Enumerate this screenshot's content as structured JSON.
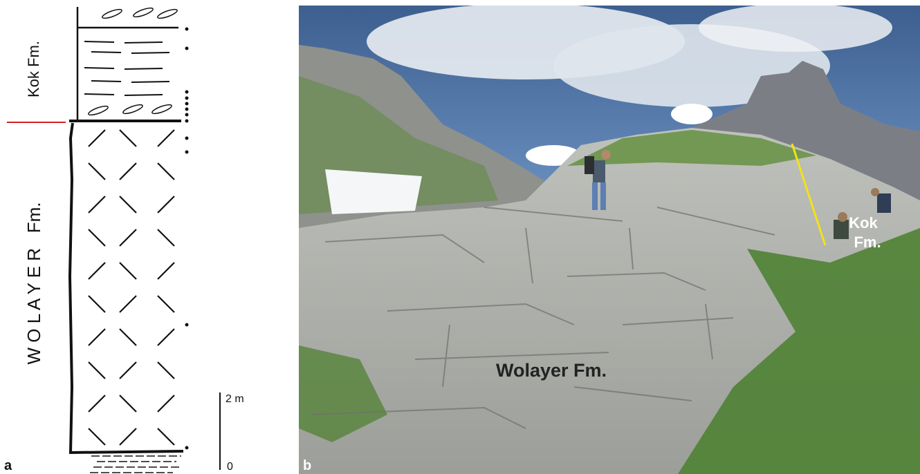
{
  "panel_a": {
    "label": "a",
    "upper_unit": "Kok Fm.",
    "lower_unit": "W O L A Y E R   Fm.",
    "scale_top": "2 m",
    "scale_bottom": "0"
  },
  "panel_b": {
    "label": "b",
    "lower_unit": "Wolayer Fm.",
    "upper_unit": [
      "Kok",
      "Fm."
    ]
  }
}
